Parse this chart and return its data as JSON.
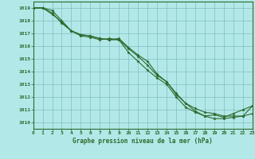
{
  "title": "Graphe pression niveau de la mer (hPa)",
  "bg_color": "#b3e8e8",
  "plot_bg_color": "#b3e8e8",
  "line_color": "#2d6a2d",
  "grid_color": "#7fbfbf",
  "text_color": "#2d6a2d",
  "xlim": [
    0,
    23
  ],
  "ylim": [
    1009.5,
    1019.5
  ],
  "yticks": [
    1010,
    1011,
    1012,
    1013,
    1014,
    1015,
    1016,
    1017,
    1018,
    1019
  ],
  "xticks": [
    0,
    1,
    2,
    3,
    4,
    5,
    6,
    7,
    8,
    9,
    10,
    11,
    12,
    13,
    14,
    15,
    16,
    17,
    18,
    19,
    20,
    21,
    22,
    23
  ],
  "series1_x": [
    0,
    1,
    2,
    3,
    4,
    5,
    6,
    7,
    8,
    9,
    10,
    11,
    12,
    13,
    14,
    15,
    16,
    17,
    18,
    19,
    20,
    21,
    22,
    23
  ],
  "series1_y": [
    1019.0,
    1019.0,
    1018.6,
    1017.8,
    1017.2,
    1016.8,
    1016.7,
    1016.5,
    1016.6,
    1016.5,
    1015.8,
    1015.2,
    1014.5,
    1013.7,
    1013.2,
    1012.2,
    1011.5,
    1011.1,
    1010.8,
    1010.7,
    1010.5,
    1010.5,
    1010.5,
    1010.7
  ],
  "series2_x": [
    0,
    1,
    2,
    3,
    4,
    5,
    6,
    7,
    8,
    9,
    10,
    11,
    12,
    13,
    14,
    15,
    16,
    17,
    18,
    19,
    20,
    21,
    22,
    23
  ],
  "series2_y": [
    1019.0,
    1019.0,
    1018.5,
    1017.9,
    1017.2,
    1016.9,
    1016.8,
    1016.6,
    1016.5,
    1016.5,
    1015.5,
    1014.8,
    1014.1,
    1013.5,
    1013.0,
    1012.0,
    1011.2,
    1010.8,
    1010.5,
    1010.3,
    1010.3,
    1010.4,
    1010.5,
    1011.3
  ],
  "series3_x": [
    0,
    1,
    2,
    3,
    4,
    5,
    6,
    7,
    8,
    9,
    10,
    11,
    12,
    13,
    14,
    15,
    16,
    17,
    18,
    19,
    20,
    21,
    22,
    23
  ],
  "series3_y": [
    1019.0,
    1019.0,
    1018.8,
    1018.0,
    1017.2,
    1016.9,
    1016.8,
    1016.6,
    1016.5,
    1016.6,
    1015.9,
    1015.3,
    1014.8,
    1013.8,
    1013.2,
    1012.3,
    1011.5,
    1010.9,
    1010.5,
    1010.6,
    1010.4,
    1010.7,
    1011.0,
    1011.3
  ]
}
